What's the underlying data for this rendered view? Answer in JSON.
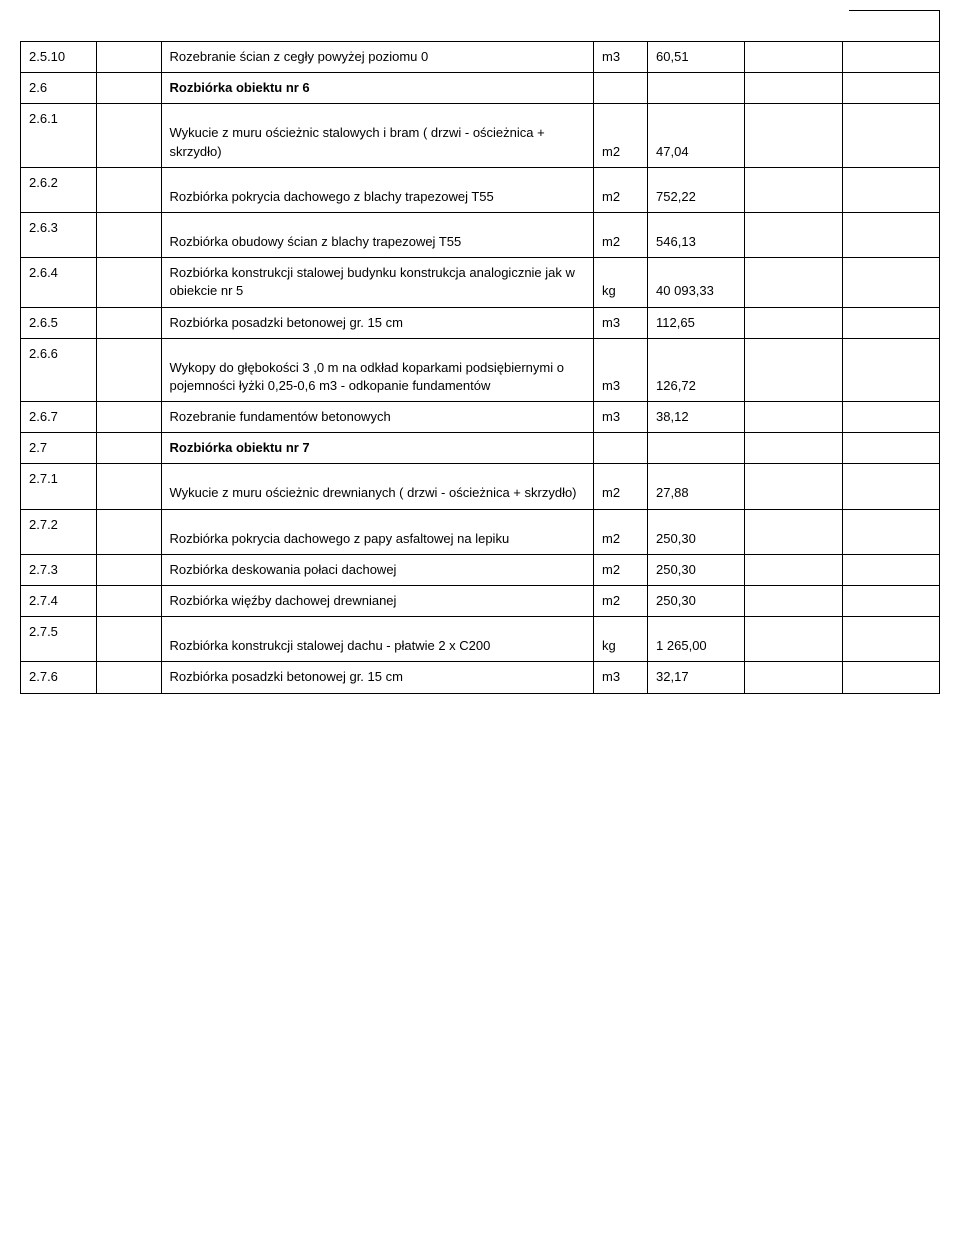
{
  "table": {
    "rows": [
      {
        "code": "2.5.10",
        "desc": "Rozebranie ścian z cegły powyżej poziomu 0",
        "unit": "m3",
        "qty": "60,51",
        "bold": false,
        "pad": false
      },
      {
        "code": "2.6",
        "desc": "Rozbiórka obiektu nr 6",
        "unit": "",
        "qty": "",
        "bold": true,
        "pad": false
      },
      {
        "code": "2.6.1",
        "desc": "Wykucie z muru ościeżnic stalowych i bram ( drzwi - ościeżnica + skrzydło)",
        "unit": "m2",
        "qty": "47,04",
        "bold": false,
        "pad": true
      },
      {
        "code": "2.6.2",
        "desc": "Rozbiórka pokrycia dachowego z blachy trapezowej T55",
        "unit": "m2",
        "qty": "752,22",
        "bold": false,
        "pad": true
      },
      {
        "code": "2.6.3",
        "desc": "Rozbiórka obudowy ścian z blachy trapezowej T55",
        "unit": "m2",
        "qty": "546,13",
        "bold": false,
        "pad": true
      },
      {
        "code": "2.6.4",
        "desc": "Rozbiórka  konstrukcji stalowej budynku konstrukcja  analogicznie jak w obiekcie nr 5",
        "unit": "kg",
        "qty": "40 093,33",
        "bold": false,
        "pad": false
      },
      {
        "code": "2.6.5",
        "desc": "Rozbiórka posadzki betonowej gr. 15 cm",
        "unit": "m3",
        "qty": "112,65",
        "bold": false,
        "pad": false
      },
      {
        "code": "2.6.6",
        "desc": "Wykopy do głębokości 3 ,0 m na odkład koparkami podsiębiernymi o pojemności łyżki 0,25-0,6 m3 - odkopanie fundamentów",
        "unit": "m3",
        "qty": "126,72",
        "bold": false,
        "pad": true
      },
      {
        "code": "2.6.7",
        "desc": "Rozebranie fundamentów betonowych",
        "unit": "m3",
        "qty": "38,12",
        "bold": false,
        "pad": false
      },
      {
        "code": "2.7",
        "desc": "Rozbiórka obiektu nr 7",
        "unit": "",
        "qty": "",
        "bold": true,
        "pad": false
      },
      {
        "code": "2.7.1",
        "desc": "Wykucie z muru ościeżnic drewnianych ( drzwi - ościeżnica + skrzydło)",
        "unit": "m2",
        "qty": "27,88",
        "bold": false,
        "pad": true
      },
      {
        "code": "2.7.2",
        "desc": "Rozbiórka pokrycia dachowego z papy asfaltowej na lepiku",
        "unit": "m2",
        "qty": "250,30",
        "bold": false,
        "pad": true
      },
      {
        "code": "2.7.3",
        "desc": "Rozbiórka deskowania połaci dachowej",
        "unit": "m2",
        "qty": "250,30",
        "bold": false,
        "pad": false
      },
      {
        "code": "2.7.4",
        "desc": "Rozbiórka więźby dachowej drewnianej",
        "unit": "m2",
        "qty": "250,30",
        "bold": false,
        "pad": false
      },
      {
        "code": "2.7.5",
        "desc": "Rozbiórka  konstrukcji stalowej dachu - płatwie 2 x C200",
        "unit": "kg",
        "qty": "1 265,00",
        "bold": false,
        "pad": true
      },
      {
        "code": "2.7.6",
        "desc": "Rozbiórka posadzki betonowej gr. 15 cm",
        "unit": "m3",
        "qty": "32,17",
        "bold": false,
        "pad": false
      }
    ]
  },
  "style": {
    "font_family": "Arial, sans-serif",
    "font_size_pt": 10,
    "border_color": "#000000",
    "background_color": "#ffffff",
    "text_color": "#000000"
  }
}
